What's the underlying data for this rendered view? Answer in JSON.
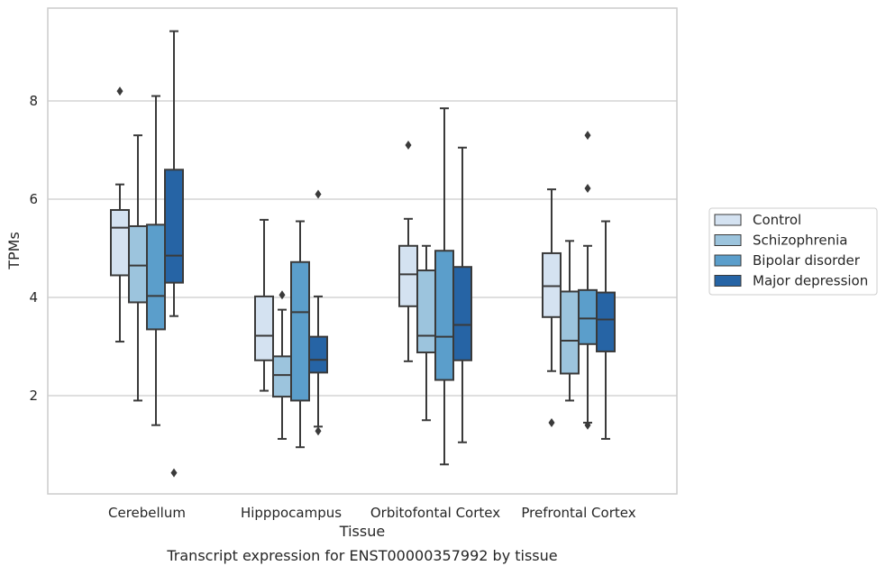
{
  "chart_data": {
    "type": "box",
    "xlabel": "Tissue",
    "ylabel": "TPMs",
    "caption": "Transcript expression for ENST00000357992 by tissue",
    "categories": [
      "Cerebellum",
      "Hipppocampus",
      "Orbitofontal Cortex",
      "Prefrontal Cortex"
    ],
    "y_ticks": [
      2,
      4,
      6,
      8
    ],
    "ylim": [
      0,
      9.9
    ],
    "grid": "horizontal",
    "legend_position": "right",
    "series": [
      {
        "name": "Control",
        "color": "#d4e2f1",
        "boxes": [
          {
            "whisker_low": 3.1,
            "q1": 4.45,
            "median": 5.42,
            "q3": 5.78,
            "whisker_high": 6.3,
            "outliers": [
              8.2
            ]
          },
          {
            "whisker_low": 2.1,
            "q1": 2.72,
            "median": 3.22,
            "q3": 4.02,
            "whisker_high": 5.58,
            "outliers": []
          },
          {
            "whisker_low": 2.7,
            "q1": 3.82,
            "median": 4.47,
            "q3": 5.05,
            "whisker_high": 5.6,
            "outliers": [
              7.1
            ]
          },
          {
            "whisker_low": 2.5,
            "q1": 3.6,
            "median": 4.23,
            "q3": 4.9,
            "whisker_high": 6.2,
            "outliers": [
              1.45
            ]
          }
        ]
      },
      {
        "name": "Schizophrenia",
        "color": "#9cc4dd",
        "boxes": [
          {
            "whisker_low": 1.9,
            "q1": 3.9,
            "median": 4.65,
            "q3": 5.45,
            "whisker_high": 7.3,
            "outliers": []
          },
          {
            "whisker_low": 1.12,
            "q1": 1.98,
            "median": 2.42,
            "q3": 2.8,
            "whisker_high": 3.75,
            "outliers": [
              4.05
            ]
          },
          {
            "whisker_low": 1.5,
            "q1": 2.88,
            "median": 3.22,
            "q3": 4.55,
            "whisker_high": 5.05,
            "outliers": []
          },
          {
            "whisker_low": 1.9,
            "q1": 2.45,
            "median": 3.12,
            "q3": 4.12,
            "whisker_high": 5.15,
            "outliers": []
          }
        ]
      },
      {
        "name": "Bipolar disorder",
        "color": "#5b9ecb",
        "boxes": [
          {
            "whisker_low": 1.4,
            "q1": 3.35,
            "median": 4.03,
            "q3": 5.48,
            "whisker_high": 8.1,
            "outliers": []
          },
          {
            "whisker_low": 0.95,
            "q1": 1.9,
            "median": 3.7,
            "q3": 4.72,
            "whisker_high": 5.55,
            "outliers": []
          },
          {
            "whisker_low": 0.6,
            "q1": 2.32,
            "median": 3.2,
            "q3": 4.95,
            "whisker_high": 7.85,
            "outliers": []
          },
          {
            "whisker_low": 1.45,
            "q1": 3.05,
            "median": 3.57,
            "q3": 4.15,
            "whisker_high": 5.05,
            "outliers": [
              7.3,
              6.22,
              1.4
            ]
          }
        ]
      },
      {
        "name": "Major depression",
        "color": "#2664a5",
        "boxes": [
          {
            "whisker_low": 3.62,
            "q1": 4.3,
            "median": 4.85,
            "q3": 6.6,
            "whisker_high": 9.42,
            "outliers": [
              0.43
            ]
          },
          {
            "whisker_low": 1.37,
            "q1": 2.47,
            "median": 2.73,
            "q3": 3.2,
            "whisker_high": 4.02,
            "outliers": [
              6.1,
              1.28
            ]
          },
          {
            "whisker_low": 1.05,
            "q1": 2.72,
            "median": 3.44,
            "q3": 4.62,
            "whisker_high": 7.05,
            "outliers": []
          },
          {
            "whisker_low": 1.12,
            "q1": 2.9,
            "median": 3.55,
            "q3": 4.1,
            "whisker_high": 5.55,
            "outliers": []
          }
        ]
      }
    ]
  }
}
